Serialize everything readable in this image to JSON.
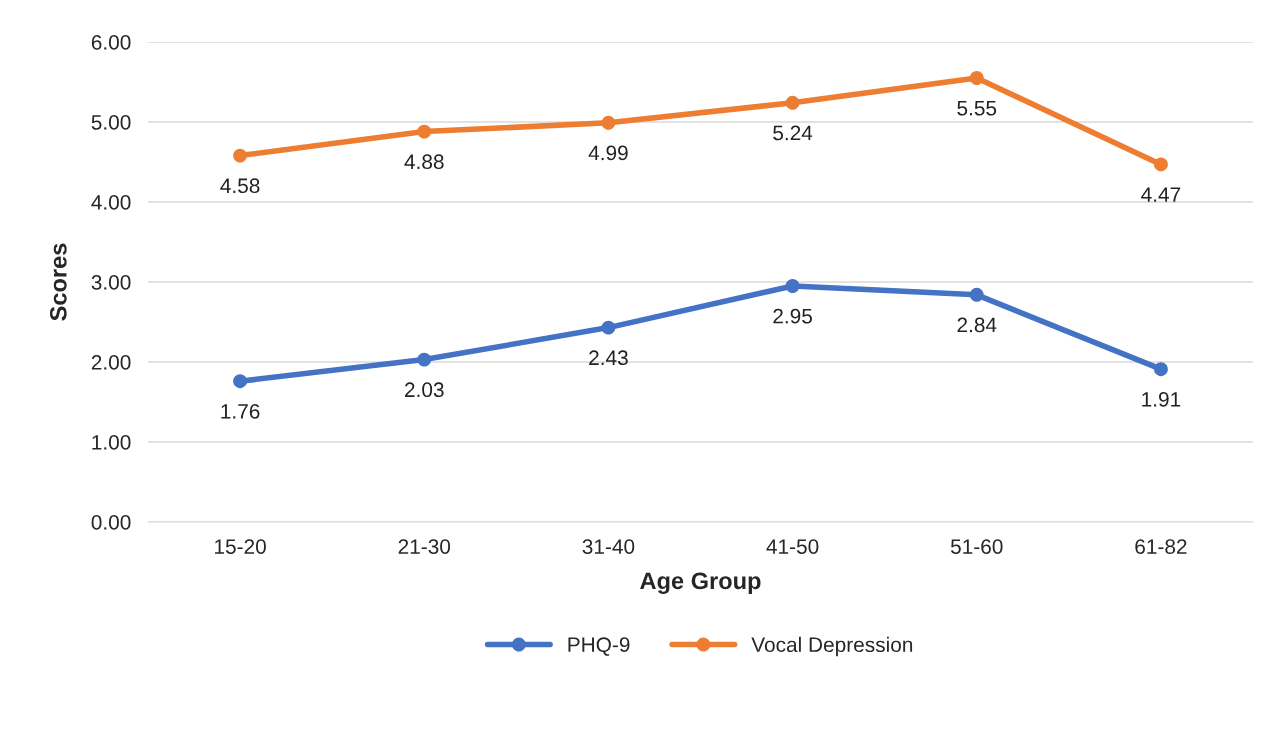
{
  "chart_data": {
    "type": "line",
    "xlabel": "Age Group",
    "ylabel": "Scores",
    "categories": [
      "15-20",
      "21-30",
      "31-40",
      "41-50",
      "51-60",
      "61-82"
    ],
    "series": [
      {
        "name": "PHQ-9",
        "color": "#4472c4",
        "values": [
          1.76,
          2.03,
          2.43,
          2.95,
          2.84,
          1.91
        ]
      },
      {
        "name": "Vocal Depression",
        "color": "#ed7d31",
        "values": [
          4.58,
          4.88,
          4.99,
          5.24,
          5.55,
          4.47
        ]
      }
    ],
    "ylim": [
      0,
      6
    ],
    "yticks": [
      {
        "value": 0,
        "label": "0.00"
      },
      {
        "value": 1,
        "label": "1.00"
      },
      {
        "value": 2,
        "label": "2.00"
      },
      {
        "value": 3,
        "label": "3.00"
      },
      {
        "value": 4,
        "label": "4.00"
      },
      {
        "value": 5,
        "label": "5.00"
      },
      {
        "value": 6,
        "label": "6.00"
      }
    ],
    "grid": "y",
    "legend": "bottom",
    "marker": "circle",
    "line_style": "solid",
    "data_labels": true
  }
}
